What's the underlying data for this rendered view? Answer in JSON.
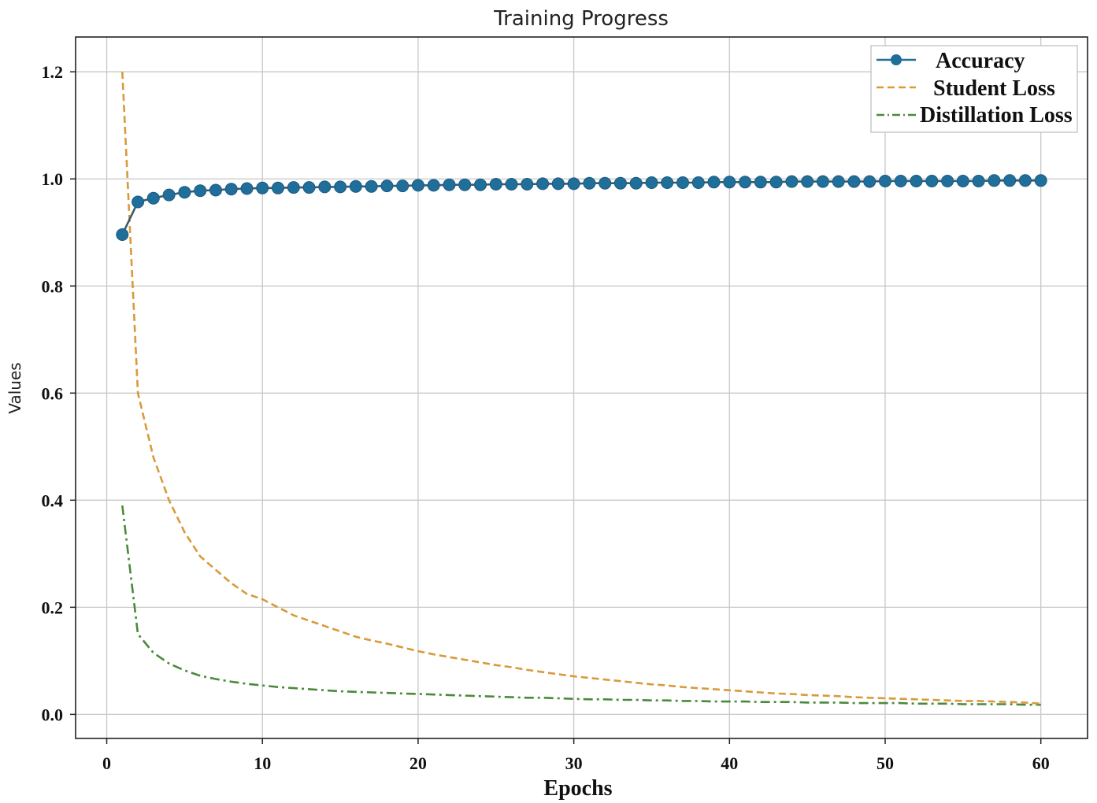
{
  "chart_data": {
    "type": "line",
    "title": "Training Progress",
    "xlabel": "Epochs",
    "ylabel": "Values",
    "xlim": [
      -2,
      63
    ],
    "ylim": [
      -0.045,
      1.265
    ],
    "xticks": [
      0,
      10,
      20,
      30,
      40,
      50,
      60
    ],
    "yticks": [
      0.0,
      0.2,
      0.4,
      0.6,
      0.8,
      1.0,
      1.2
    ],
    "xtick_labels": [
      "0",
      "10",
      "20",
      "30",
      "40",
      "50",
      "60"
    ],
    "ytick_labels": [
      "0.0",
      "0.2",
      "0.4",
      "0.6",
      "0.8",
      "1.0",
      "1.2"
    ],
    "grid": true,
    "legend_position": "top-right",
    "x": [
      1,
      2,
      3,
      4,
      5,
      6,
      7,
      8,
      9,
      10,
      11,
      12,
      13,
      14,
      15,
      16,
      17,
      18,
      19,
      20,
      21,
      22,
      23,
      24,
      25,
      26,
      27,
      28,
      29,
      30,
      31,
      32,
      33,
      34,
      35,
      36,
      37,
      38,
      39,
      40,
      41,
      42,
      43,
      44,
      45,
      46,
      47,
      48,
      49,
      50,
      51,
      52,
      53,
      54,
      55,
      56,
      57,
      58,
      59,
      60
    ],
    "series": [
      {
        "name": "Accuracy",
        "color": "#1f6f9a",
        "style": "solid-marker",
        "values": [
          0.896,
          0.957,
          0.964,
          0.97,
          0.975,
          0.978,
          0.979,
          0.981,
          0.982,
          0.983,
          0.983,
          0.984,
          0.984,
          0.985,
          0.985,
          0.986,
          0.986,
          0.987,
          0.987,
          0.988,
          0.988,
          0.989,
          0.989,
          0.989,
          0.99,
          0.99,
          0.99,
          0.991,
          0.991,
          0.991,
          0.992,
          0.992,
          0.992,
          0.992,
          0.993,
          0.993,
          0.993,
          0.993,
          0.994,
          0.994,
          0.994,
          0.994,
          0.994,
          0.995,
          0.995,
          0.995,
          0.995,
          0.995,
          0.995,
          0.996,
          0.996,
          0.996,
          0.996,
          0.996,
          0.996,
          0.996,
          0.997,
          0.997,
          0.997,
          0.997
        ]
      },
      {
        "name": "Student Loss",
        "color": "#d89a3a",
        "style": "dashed",
        "values": [
          1.2,
          0.6,
          0.48,
          0.4,
          0.34,
          0.295,
          0.27,
          0.245,
          0.225,
          0.215,
          0.2,
          0.185,
          0.175,
          0.165,
          0.155,
          0.145,
          0.138,
          0.132,
          0.125,
          0.118,
          0.112,
          0.107,
          0.102,
          0.097,
          0.092,
          0.088,
          0.083,
          0.079,
          0.075,
          0.071,
          0.068,
          0.065,
          0.062,
          0.059,
          0.056,
          0.054,
          0.051,
          0.049,
          0.047,
          0.045,
          0.043,
          0.041,
          0.039,
          0.038,
          0.036,
          0.035,
          0.034,
          0.032,
          0.031,
          0.03,
          0.029,
          0.028,
          0.027,
          0.026,
          0.025,
          0.025,
          0.024,
          0.023,
          0.022,
          0.02
        ]
      },
      {
        "name": "Distillation Loss",
        "color": "#4a8a3a",
        "style": "dashdot",
        "values": [
          0.39,
          0.15,
          0.115,
          0.095,
          0.082,
          0.072,
          0.066,
          0.061,
          0.057,
          0.054,
          0.051,
          0.049,
          0.047,
          0.045,
          0.043,
          0.042,
          0.041,
          0.04,
          0.039,
          0.038,
          0.037,
          0.036,
          0.035,
          0.034,
          0.033,
          0.032,
          0.031,
          0.031,
          0.03,
          0.029,
          0.028,
          0.028,
          0.027,
          0.027,
          0.026,
          0.026,
          0.025,
          0.025,
          0.024,
          0.024,
          0.024,
          0.023,
          0.023,
          0.023,
          0.022,
          0.022,
          0.022,
          0.021,
          0.021,
          0.021,
          0.021,
          0.02,
          0.02,
          0.02,
          0.019,
          0.019,
          0.019,
          0.019,
          0.018,
          0.018
        ]
      }
    ]
  }
}
